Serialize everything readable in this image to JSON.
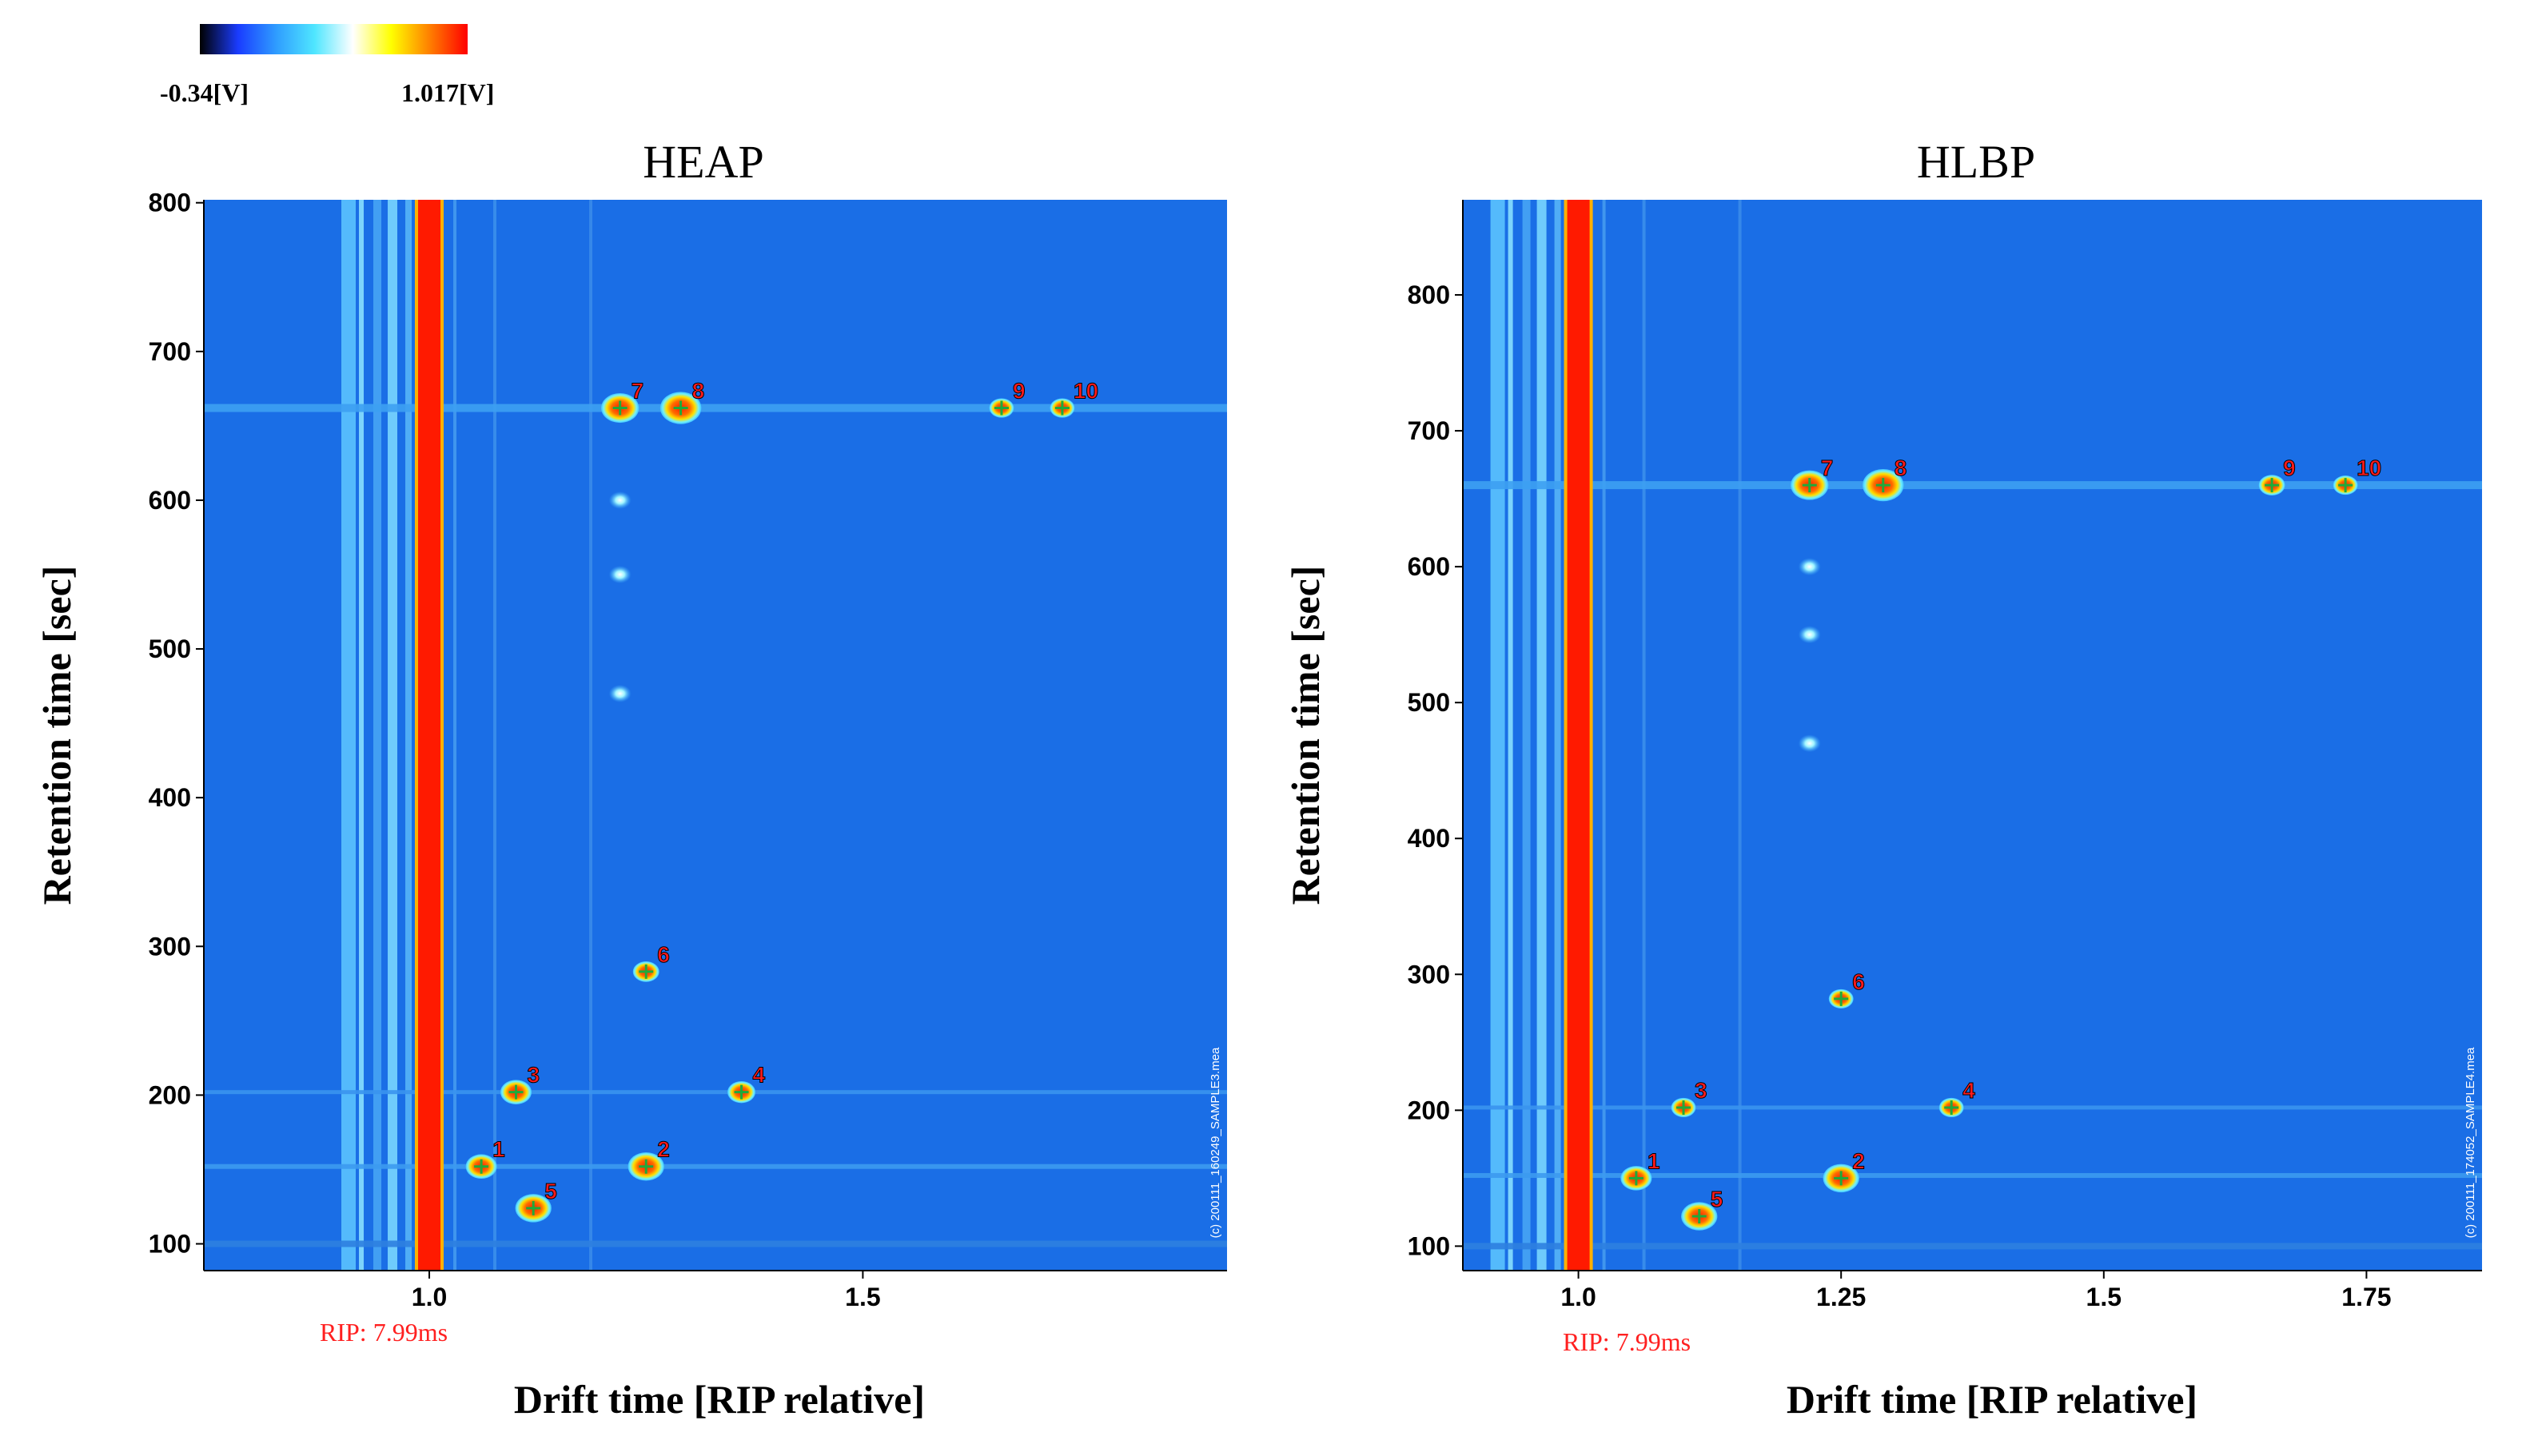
{
  "colorbar": {
    "min_label": "-0.34[V]",
    "max_label": "1.017[V]",
    "stops": [
      "#000000",
      "#1a3cff",
      "#2f9dff",
      "#4fe6ff",
      "#ffffff",
      "#ffff00",
      "#ff8000",
      "#ff0000"
    ]
  },
  "colors": {
    "background": "#1a6ee6",
    "rip": "#ff1a00",
    "peak_core": "#ff2000",
    "peak_label": "#ff1a1a",
    "marker": "#1faa3a",
    "rip_label": "#ff2020"
  },
  "chart_data": [
    {
      "type": "heatmap",
      "title": "HEAP",
      "xlabel": "Drift time [RIP relative]",
      "ylabel": "Retention time [sec]",
      "xlim": [
        0.74,
        1.92
      ],
      "ylim": [
        82,
        802
      ],
      "xticks": [
        {
          "v": 1.0,
          "label": "1.0"
        },
        {
          "v": 1.5,
          "label": "1.5"
        }
      ],
      "yticks": [
        {
          "v": 100,
          "label": "100"
        },
        {
          "v": 200,
          "label": "200"
        },
        {
          "v": 300,
          "label": "300"
        },
        {
          "v": 400,
          "label": "400"
        },
        {
          "v": 500,
          "label": "500"
        },
        {
          "v": 600,
          "label": "600"
        },
        {
          "v": 700,
          "label": "700"
        },
        {
          "v": 800,
          "label": "800"
        }
      ],
      "rip_annotation": "RIP: 7.99ms",
      "sample_label": "(c) 200111_160249_SAMPLE3.mea",
      "peaks": [
        {
          "label": "1",
          "x": 1.06,
          "y": 152,
          "size": 1.0
        },
        {
          "label": "2",
          "x": 1.25,
          "y": 152,
          "size": 1.3
        },
        {
          "label": "3",
          "x": 1.1,
          "y": 202,
          "size": 1.0
        },
        {
          "label": "4",
          "x": 1.36,
          "y": 202,
          "size": 0.8
        },
        {
          "label": "5",
          "x": 1.12,
          "y": 124,
          "size": 1.3
        },
        {
          "label": "6",
          "x": 1.25,
          "y": 283,
          "size": 0.7
        },
        {
          "label": "7",
          "x": 1.22,
          "y": 662,
          "size": 1.4
        },
        {
          "label": "8",
          "x": 1.29,
          "y": 662,
          "size": 1.6
        },
        {
          "label": "9",
          "x": 1.66,
          "y": 662,
          "size": 0.6
        },
        {
          "label": "10",
          "x": 1.73,
          "y": 662,
          "size": 0.6
        }
      ]
    },
    {
      "type": "heatmap",
      "title": "HLBP",
      "xlabel": "Drift time [RIP relative]",
      "ylabel": "Retention time [sec]",
      "xlim": [
        0.89,
        1.86
      ],
      "ylim": [
        82,
        870
      ],
      "xticks": [
        {
          "v": 1.0,
          "label": "1.0"
        },
        {
          "v": 1.25,
          "label": "1.25"
        },
        {
          "v": 1.5,
          "label": "1.5"
        },
        {
          "v": 1.75,
          "label": "1.75"
        }
      ],
      "yticks": [
        {
          "v": 100,
          "label": "100"
        },
        {
          "v": 200,
          "label": "200"
        },
        {
          "v": 300,
          "label": "300"
        },
        {
          "v": 400,
          "label": "400"
        },
        {
          "v": 500,
          "label": "500"
        },
        {
          "v": 600,
          "label": "600"
        },
        {
          "v": 700,
          "label": "700"
        },
        {
          "v": 800,
          "label": "800"
        }
      ],
      "rip_annotation": "RIP: 7.99ms",
      "sample_label": "(c) 200111_174052_SAMPLE4.mea",
      "peaks": [
        {
          "label": "1",
          "x": 1.055,
          "y": 150,
          "size": 1.0
        },
        {
          "label": "2",
          "x": 1.25,
          "y": 150,
          "size": 1.3
        },
        {
          "label": "3",
          "x": 1.1,
          "y": 202,
          "size": 0.6
        },
        {
          "label": "4",
          "x": 1.355,
          "y": 202,
          "size": 0.6
        },
        {
          "label": "5",
          "x": 1.115,
          "y": 122,
          "size": 1.3
        },
        {
          "label": "6",
          "x": 1.25,
          "y": 282,
          "size": 0.6
        },
        {
          "label": "7",
          "x": 1.22,
          "y": 660,
          "size": 1.4
        },
        {
          "label": "8",
          "x": 1.29,
          "y": 660,
          "size": 1.6
        },
        {
          "label": "9",
          "x": 1.66,
          "y": 660,
          "size": 0.7
        },
        {
          "label": "10",
          "x": 1.73,
          "y": 660,
          "size": 0.6
        }
      ]
    }
  ]
}
